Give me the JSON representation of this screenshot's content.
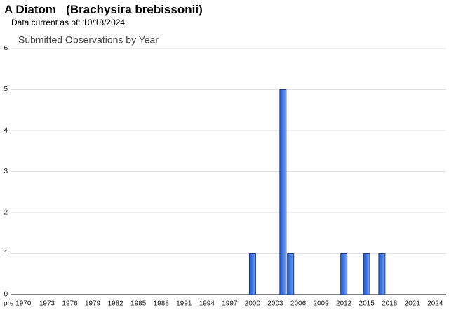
{
  "header": {
    "title": "A Diatom   (Brachysira brebissonii)",
    "data_date": "Data current as of: 10/18/2024"
  },
  "chart_data": {
    "type": "bar",
    "title": "Submitted Observations by Year",
    "categories": [
      "pre 1970",
      null,
      null,
      "1973",
      null,
      null,
      "1976",
      null,
      null,
      "1979",
      null,
      null,
      "1982",
      null,
      null,
      "1985",
      null,
      null,
      "1988",
      null,
      null,
      "1991",
      null,
      null,
      "1994",
      null,
      null,
      "1997",
      null,
      null,
      "2000",
      null,
      null,
      "2003",
      null,
      null,
      "2006",
      null,
      null,
      "2009",
      null,
      null,
      "2012",
      null,
      null,
      "2015",
      null,
      null,
      "2018",
      null,
      null,
      "2021",
      null,
      null,
      "2024"
    ],
    "values": [
      0,
      0,
      0,
      0,
      0,
      0,
      0,
      0,
      0,
      0,
      0,
      0,
      0,
      0,
      0,
      0,
      0,
      0,
      0,
      0,
      0,
      0,
      0,
      0,
      0,
      0,
      0,
      0,
      0,
      0,
      1,
      0,
      0,
      0,
      5,
      1,
      0,
      0,
      0,
      0,
      0,
      0,
      1,
      0,
      0,
      1,
      0,
      1,
      0,
      0,
      0,
      0,
      0,
      0,
      0
    ],
    "color": "#3d74dc",
    "ylim": [
      0,
      6
    ],
    "yticks": [
      0,
      1,
      2,
      3,
      4,
      5,
      6
    ],
    "grid": true
  }
}
